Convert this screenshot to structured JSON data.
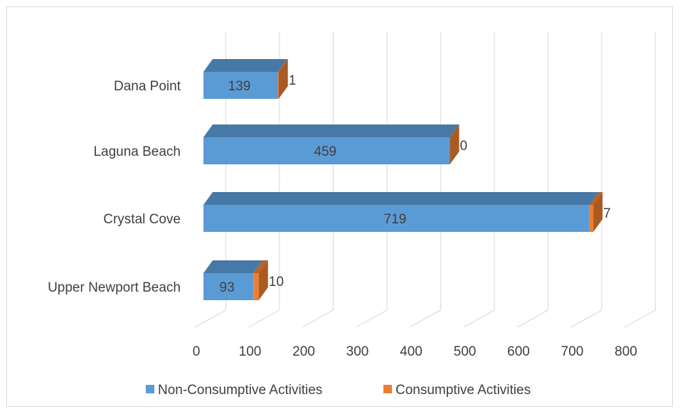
{
  "chart_data": {
    "type": "bar",
    "orientation": "horizontal",
    "stacked": true,
    "three_d": true,
    "categories": [
      "Dana Point",
      "Laguna Beach",
      "Crystal Cove",
      "Upper Newport Beach"
    ],
    "series": [
      {
        "name": "Non-Consumptive Activities",
        "values": [
          139,
          459,
          719,
          93
        ],
        "color": "#5b9bd5"
      },
      {
        "name": "Consumptive Activities",
        "values": [
          1,
          0,
          7,
          10
        ],
        "color": "#ed7d31"
      }
    ],
    "x_ticks": [
      "0",
      "100",
      "200",
      "300",
      "400",
      "500",
      "600",
      "700",
      "800"
    ],
    "xlim": [
      0,
      800
    ],
    "grid": true,
    "legend_position": "bottom"
  }
}
